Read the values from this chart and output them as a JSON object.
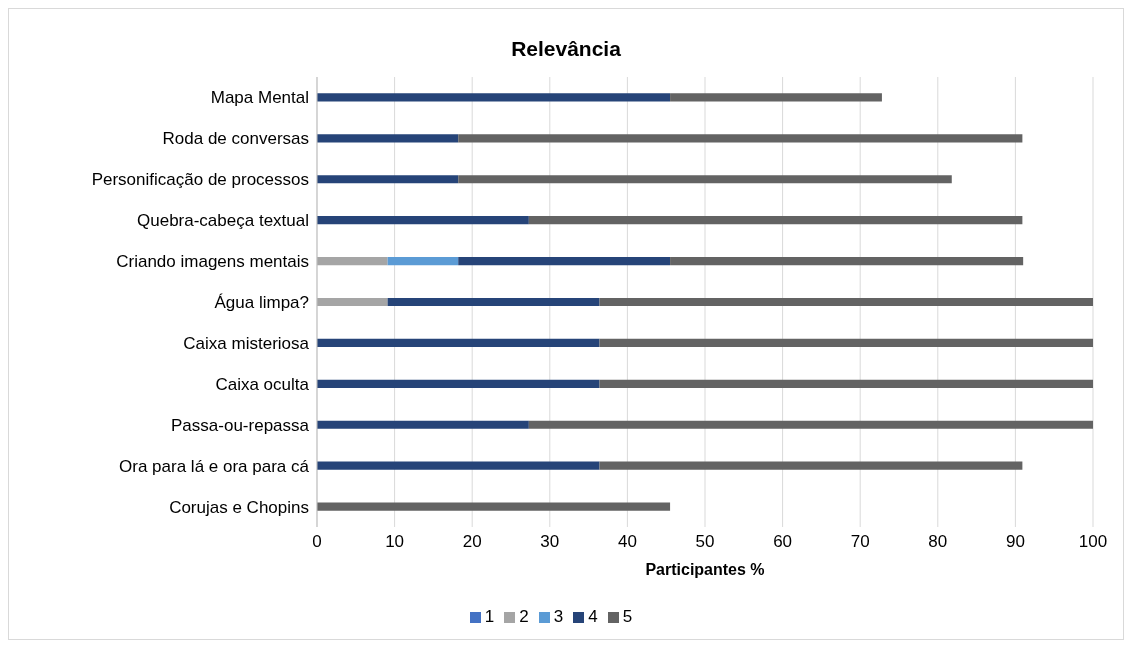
{
  "chart_data": {
    "type": "bar",
    "orientation": "horizontal",
    "stacked": true,
    "title": "Relevância",
    "xlabel": "Participantes %",
    "categories": [
      "Mapa Mental",
      "Roda de conversas",
      "Personificação de processos",
      "Quebra-cabeça textual",
      "Criando imagens mentais",
      "Água limpa?",
      "Caixa misteriosa",
      "Caixa oculta",
      "Passa-ou-repassa",
      "Ora para lá e ora para cá",
      "Corujas e Chopins"
    ],
    "series": [
      {
        "name": "1",
        "color": "#4472c4",
        "values": [
          0,
          0,
          0,
          0,
          0,
          0,
          0,
          0,
          0,
          0,
          0
        ]
      },
      {
        "name": "2",
        "color": "#a5a5a5",
        "values": [
          0,
          0,
          0,
          0,
          9.1,
          9.1,
          0,
          0,
          0,
          0,
          0
        ]
      },
      {
        "name": "3",
        "color": "#5b9bd5",
        "values": [
          0,
          0,
          0,
          0,
          9.1,
          0,
          0,
          0,
          0,
          0,
          0
        ]
      },
      {
        "name": "4",
        "color": "#264478",
        "values": [
          45.5,
          18.2,
          18.2,
          27.3,
          27.3,
          27.3,
          36.4,
          36.4,
          27.3,
          36.4,
          0
        ]
      },
      {
        "name": "5",
        "color": "#636363",
        "values": [
          27.3,
          72.7,
          63.6,
          63.6,
          45.5,
          63.6,
          63.6,
          63.6,
          72.7,
          54.5,
          45.5
        ]
      }
    ],
    "xlim": [
      0,
      100
    ],
    "xticks": [
      0,
      10,
      20,
      30,
      40,
      50,
      60,
      70,
      80,
      90,
      100
    ],
    "grid": "x",
    "legend": "bottom"
  }
}
